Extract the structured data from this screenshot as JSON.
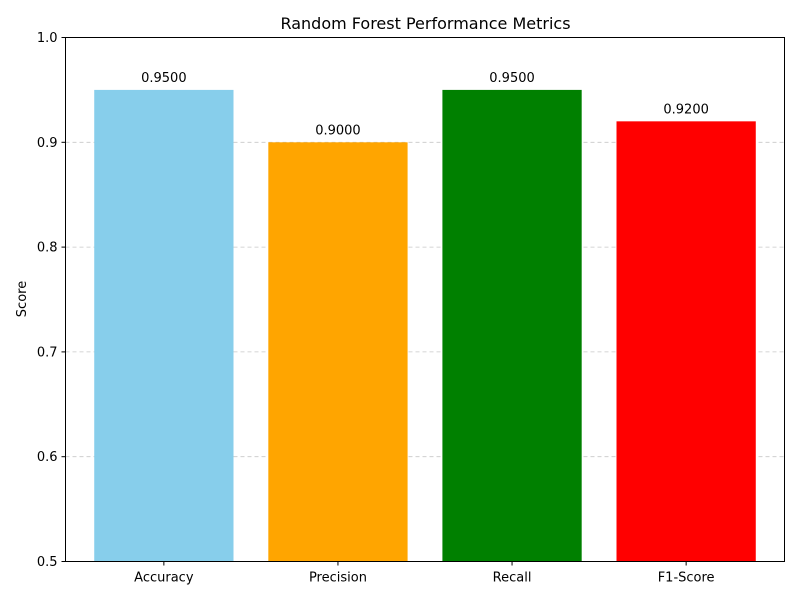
{
  "chart_data": {
    "type": "bar",
    "title": "Random Forest Performance Metrics",
    "xlabel": "",
    "ylabel": "Score",
    "categories": [
      "Accuracy",
      "Precision",
      "Recall",
      "F1-Score"
    ],
    "values": [
      0.95,
      0.9,
      0.95,
      0.92
    ],
    "value_labels": [
      "0.9500",
      "0.9000",
      "0.9500",
      "0.9200"
    ],
    "colors": [
      "#87ceeb",
      "#ffa500",
      "#008000",
      "#ff0000"
    ],
    "ylim": [
      0.5,
      1.0
    ],
    "yticks": [
      0.5,
      0.6,
      0.7,
      0.8,
      0.9,
      1.0
    ],
    "ytick_labels": [
      "0.5",
      "0.6",
      "0.7",
      "0.8",
      "0.9",
      "1.0"
    ],
    "grid": "y-dashed",
    "legend": "none"
  }
}
